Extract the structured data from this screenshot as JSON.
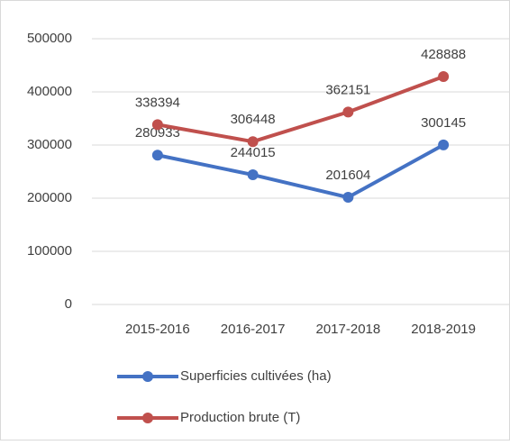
{
  "chart_data": {
    "type": "line",
    "categories": [
      "2015-2016",
      "2016-2017",
      "2017-2018",
      "2018-2019"
    ],
    "series": [
      {
        "name": "Superficies cultivées (ha)",
        "color": "#4472c4",
        "values": [
          280933,
          244015,
          201604,
          300145
        ]
      },
      {
        "name": "Production brute (T)",
        "color": "#c0504d",
        "values": [
          338394,
          306448,
          362151,
          428888
        ]
      }
    ],
    "ylim": [
      0,
      500000
    ],
    "yticks": [
      0,
      100000,
      200000,
      300000,
      400000,
      500000
    ],
    "grid": true,
    "legend": "bottom"
  }
}
